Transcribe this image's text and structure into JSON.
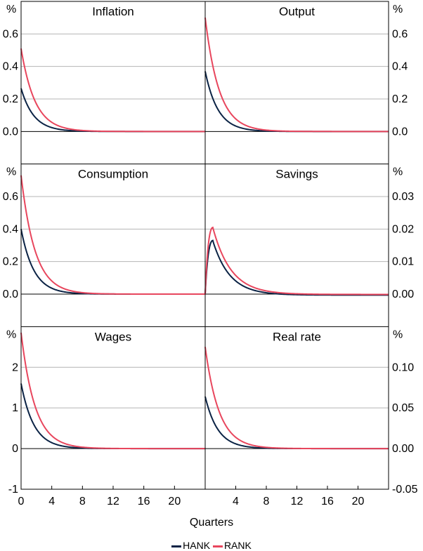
{
  "colors": {
    "hank": "#0b2345",
    "rank": "#e8465d",
    "grid": "#b4b4b4",
    "frame": "#000000"
  },
  "chart_data": {
    "type": "line",
    "xlabel": "Quarters",
    "x_range": [
      0,
      24
    ],
    "x_ticks": [
      0,
      4,
      8,
      12,
      16,
      20
    ],
    "x_tick_labels": [
      "0",
      "4",
      "8",
      "12",
      "16",
      "20"
    ],
    "legend": [
      "HANK",
      "RANK"
    ],
    "panels": [
      {
        "title": "Inflation",
        "unit_label": "%",
        "ylim": [
          -0.2,
          0.8
        ],
        "y_ticks": [
          0.0,
          0.2,
          0.4,
          0.6
        ],
        "y_tick_labels": [
          "0.0",
          "0.2",
          "0.4",
          "0.6"
        ],
        "series": [
          {
            "name": "HANK",
            "kind": "decay",
            "peak": 0.265,
            "rate": 0.6
          },
          {
            "name": "RANK",
            "kind": "decay",
            "peak": 0.51,
            "rate": 0.55
          }
        ]
      },
      {
        "title": "Output",
        "unit_label": "%",
        "ylim": [
          -0.2,
          0.8
        ],
        "y_ticks": [
          0.0,
          0.2,
          0.4,
          0.6
        ],
        "y_tick_labels": [
          "0.0",
          "0.2",
          "0.4",
          "0.6"
        ],
        "series": [
          {
            "name": "HANK",
            "kind": "decay",
            "peak": 0.37,
            "rate": 0.6
          },
          {
            "name": "RANK",
            "kind": "decay",
            "peak": 0.7,
            "rate": 0.55
          }
        ]
      },
      {
        "title": "Consumption",
        "unit_label": "%",
        "ylim": [
          -0.2,
          0.8
        ],
        "y_ticks": [
          0.0,
          0.2,
          0.4,
          0.6
        ],
        "y_tick_labels": [
          "0.0",
          "0.2",
          "0.4",
          "0.6"
        ],
        "series": [
          {
            "name": "HANK",
            "kind": "decay",
            "peak": 0.4,
            "rate": 0.6
          },
          {
            "name": "RANK",
            "kind": "decay",
            "peak": 0.73,
            "rate": 0.55
          }
        ]
      },
      {
        "title": "Savings",
        "unit_label": "%",
        "ylim": [
          -0.01,
          0.04
        ],
        "y_ticks": [
          0.0,
          0.01,
          0.02,
          0.03
        ],
        "y_tick_labels": [
          "0.00",
          "0.01",
          "0.02",
          "0.03"
        ],
        "series": [
          {
            "name": "HANK",
            "kind": "hump",
            "peak": 0.0165,
            "peak_x": 1.0,
            "rate": 0.45,
            "tail": -0.0003
          },
          {
            "name": "RANK",
            "kind": "hump",
            "peak": 0.0205,
            "peak_x": 1.0,
            "rate": 0.42,
            "tail": -0.0001
          }
        ]
      },
      {
        "title": "Wages",
        "unit_label": "%",
        "ylim": [
          -1,
          3
        ],
        "y_ticks": [
          -1,
          0,
          1,
          2
        ],
        "y_tick_labels": [
          "-1",
          "0",
          "1",
          "2"
        ],
        "series": [
          {
            "name": "HANK",
            "kind": "decay",
            "peak": 1.6,
            "rate": 0.6
          },
          {
            "name": "RANK",
            "kind": "decay",
            "peak": 2.85,
            "rate": 0.55
          }
        ]
      },
      {
        "title": "Real rate",
        "unit_label": "%",
        "ylim": [
          -0.05,
          0.15
        ],
        "y_ticks": [
          -0.05,
          0.0,
          0.05,
          0.1
        ],
        "y_tick_labels": [
          "-0.05",
          "0.00",
          "0.05",
          "0.10"
        ],
        "series": [
          {
            "name": "HANK",
            "kind": "decay",
            "peak": 0.064,
            "rate": 0.6
          },
          {
            "name": "RANK",
            "kind": "decay",
            "peak": 0.125,
            "rate": 0.55
          }
        ]
      }
    ]
  }
}
